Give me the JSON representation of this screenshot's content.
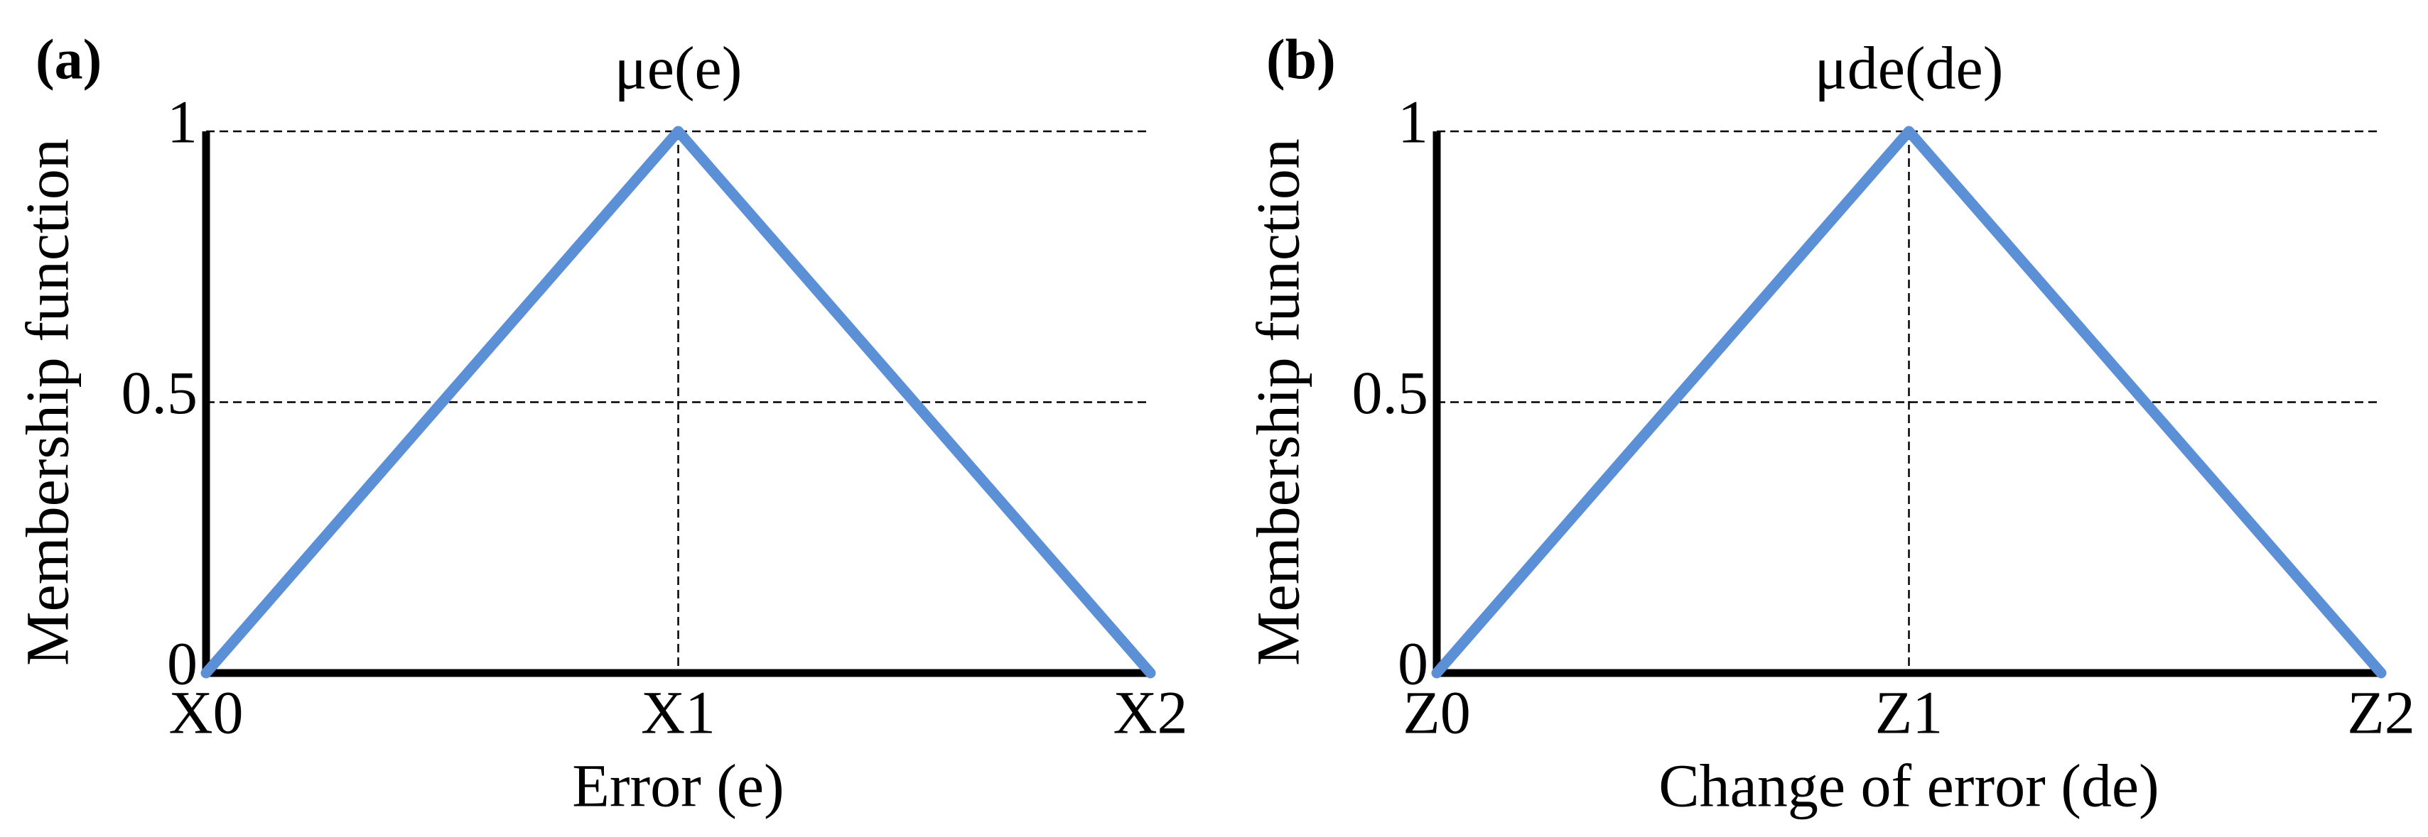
{
  "chart_data": [
    {
      "type": "line",
      "panel_label": "(a)",
      "annotation": "μe(e)",
      "x_label": "Error (e)",
      "y_label": "Membership function",
      "categories": [
        "X0",
        "X1",
        "X2"
      ],
      "series": [
        {
          "color": "#5b8fd6",
          "values": [
            0,
            1,
            0
          ]
        }
      ],
      "ylim": [
        0,
        1
      ],
      "yticks": [
        0,
        0.5,
        1
      ],
      "grid": true
    },
    {
      "type": "line",
      "panel_label": "(b)",
      "annotation": "μde(de)",
      "x_label": "Change of error (de)",
      "y_label": "Membership function",
      "categories": [
        "Z0",
        "Z1",
        "Z2"
      ],
      "series": [
        {
          "color": "#5b8fd6",
          "values": [
            0,
            1,
            0
          ]
        }
      ],
      "ylim": [
        0,
        1
      ],
      "yticks": [
        0,
        0.5,
        1
      ],
      "grid": true
    }
  ]
}
